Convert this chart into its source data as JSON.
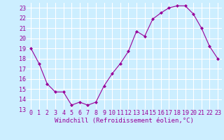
{
  "x": [
    0,
    1,
    2,
    3,
    4,
    5,
    6,
    7,
    8,
    9,
    10,
    11,
    12,
    13,
    14,
    15,
    16,
    17,
    18,
    19,
    20,
    21,
    22,
    23
  ],
  "y": [
    19,
    17.5,
    15.5,
    14.7,
    14.7,
    13.4,
    13.7,
    13.4,
    13.7,
    15.3,
    16.5,
    17.5,
    18.7,
    20.7,
    20.2,
    21.9,
    22.5,
    23.0,
    23.2,
    23.2,
    22.4,
    21.0,
    19.2,
    18.0
  ],
  "line_color": "#990099",
  "marker": "D",
  "marker_size": 2,
  "bg_color": "#cceeff",
  "grid_color": "#ffffff",
  "xlabel": "Windchill (Refroidissement éolien,°C)",
  "xlabel_color": "#990099",
  "ylim": [
    13,
    23.5
  ],
  "yticks": [
    13,
    14,
    15,
    16,
    17,
    18,
    19,
    20,
    21,
    22,
    23
  ],
  "xticks": [
    0,
    1,
    2,
    3,
    4,
    5,
    6,
    7,
    8,
    9,
    10,
    11,
    12,
    13,
    14,
    15,
    16,
    17,
    18,
    19,
    20,
    21,
    22,
    23
  ],
  "tick_color": "#990099",
  "axis_label_fontsize": 6.5,
  "tick_fontsize": 6.0,
  "line_width": 0.8
}
